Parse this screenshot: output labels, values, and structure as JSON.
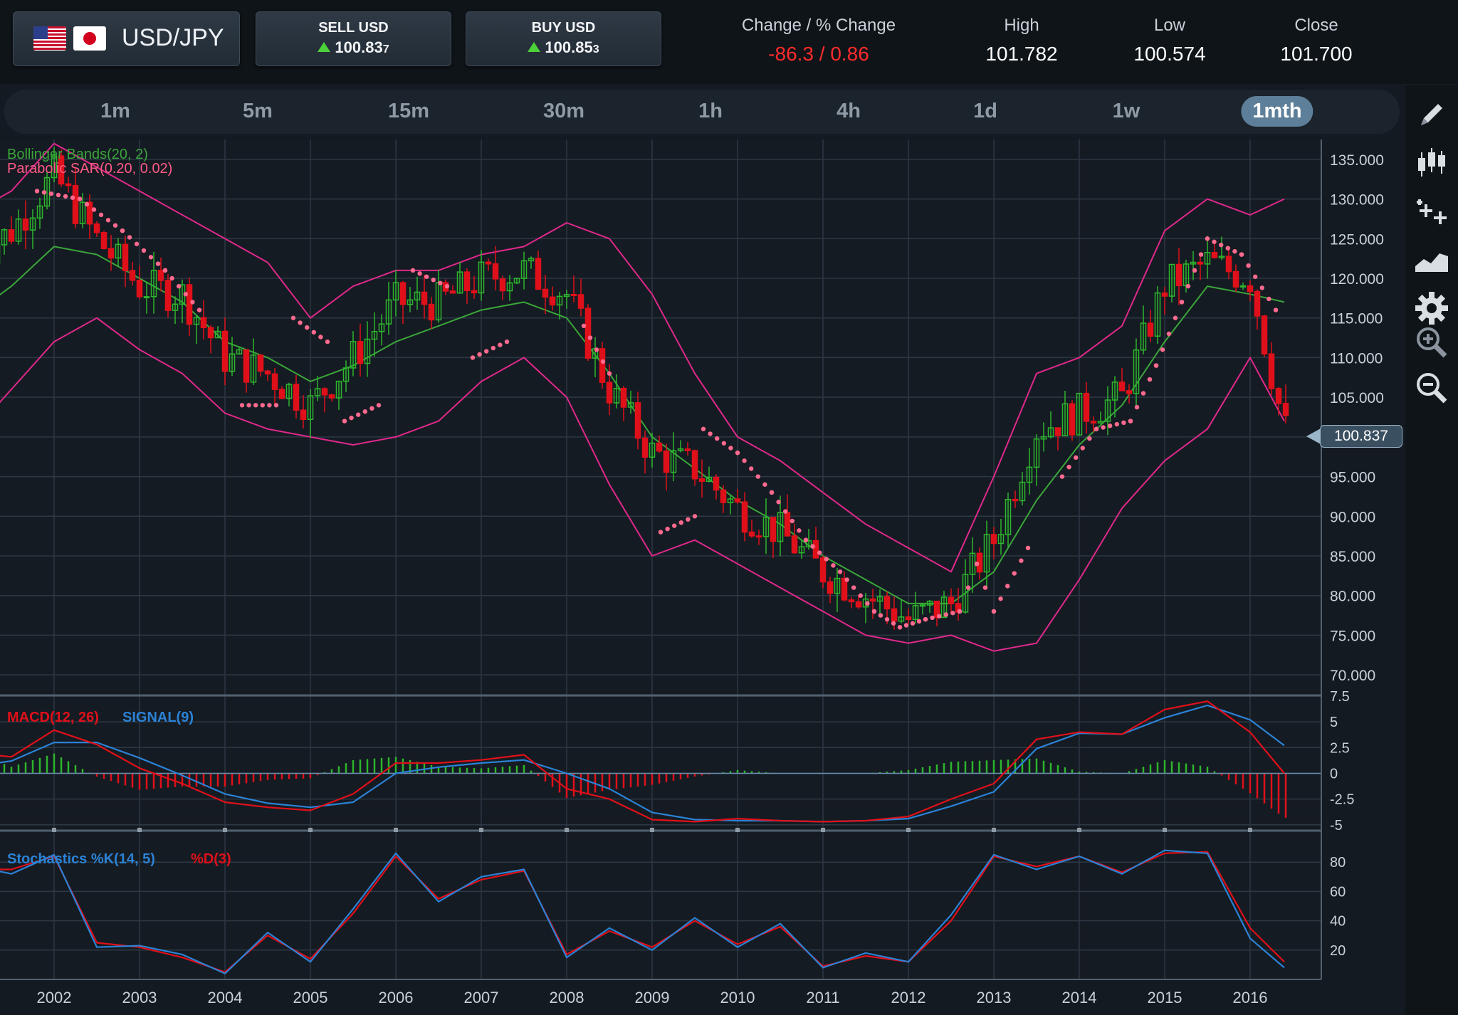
{
  "instrument": {
    "pair": "USD/JPY",
    "flags": [
      "us-flag-icon",
      "jp-flag-icon"
    ]
  },
  "sell": {
    "label": "SELL USD",
    "price_main": "100.83",
    "price_pip": "7",
    "direction": "up"
  },
  "buy": {
    "label": "BUY USD",
    "price_main": "100.85",
    "price_pip": "3",
    "direction": "up"
  },
  "stats": {
    "change_label": "Change / % Change",
    "change_value": "-86.3 / 0.86",
    "high_label": "High",
    "high_value": "101.782",
    "low_label": "Low",
    "low_value": "100.574",
    "close_label": "Close",
    "close_value": "101.700"
  },
  "timeframes": [
    {
      "label": "1m",
      "active": false
    },
    {
      "label": "5m",
      "active": false
    },
    {
      "label": "15m",
      "active": false
    },
    {
      "label": "30m",
      "active": false
    },
    {
      "label": "1h",
      "active": false
    },
    {
      "label": "4h",
      "active": false
    },
    {
      "label": "1d",
      "active": false
    },
    {
      "label": "1w",
      "active": false
    },
    {
      "label": "1mth",
      "active": true
    }
  ],
  "tools": [
    "pencil-icon",
    "candlestick-icon",
    "crosshair-add-icon",
    "area-chart-icon",
    "gear-icon",
    "zoom-in-icon",
    "zoom-out-icon"
  ],
  "current_price_marker": "100.837",
  "colors": {
    "up": "#2db52d",
    "down": "#e0101a",
    "bb_outer": "#e0288c",
    "bb_mid": "#3aa63a",
    "sar": "#ff6a8f",
    "macd": "#e0101a",
    "signal": "#2b82d6",
    "stoch_k": "#2b82d6",
    "stoch_d": "#e0101a"
  },
  "chart_data": [
    {
      "type": "candlestick",
      "title": "",
      "indicator_labels": [
        "Bollinger Bands(20, 2)",
        "Parabolic SAR(0.20, 0.02)"
      ],
      "x_ticks": [
        "2002",
        "2003",
        "2004",
        "2005",
        "2006",
        "2007",
        "2008",
        "2009",
        "2010",
        "2011",
        "2012",
        "2013",
        "2014",
        "2015",
        "2016"
      ],
      "y_ticks": [
        "135.000",
        "130.000",
        "125.000",
        "120.000",
        "115.000",
        "110.000",
        "105.000",
        "100.000",
        "95.000",
        "90.000",
        "85.000",
        "80.000",
        "75.000",
        "70.000"
      ],
      "ylim": [
        67.5,
        137.5
      ],
      "close_series": {
        "x": [
          2001.0,
          2001.5,
          2002.0,
          2002.5,
          2003.0,
          2003.5,
          2004.0,
          2004.5,
          2005.0,
          2005.5,
          2006.0,
          2006.5,
          2007.0,
          2007.5,
          2008.0,
          2008.5,
          2009.0,
          2009.5,
          2010.0,
          2010.5,
          2011.0,
          2011.5,
          2012.0,
          2012.5,
          2013.0,
          2013.5,
          2014.0,
          2014.5,
          2015.0,
          2015.5,
          2016.0,
          2016.4
        ],
        "y": [
          122,
          126,
          133,
          125,
          119,
          118,
          110,
          108,
          104,
          110,
          117,
          117,
          120,
          121,
          118,
          106,
          98,
          96,
          91,
          88,
          83,
          80,
          77,
          79,
          87,
          101,
          103,
          105,
          119,
          122,
          120,
          101
        ]
      },
      "bollinger": {
        "x": [
          2001.0,
          2001.5,
          2002.0,
          2002.5,
          2003.0,
          2003.5,
          2004.0,
          2004.5,
          2005.0,
          2005.5,
          2006.0,
          2006.5,
          2007.0,
          2007.5,
          2008.0,
          2008.5,
          2009.0,
          2009.5,
          2010.0,
          2010.5,
          2011.0,
          2011.5,
          2012.0,
          2012.5,
          2013.0,
          2013.5,
          2014.0,
          2014.5,
          2015.0,
          2015.5,
          2016.0,
          2016.4
        ],
        "upper": [
          128,
          131,
          137,
          134,
          131,
          128,
          125,
          122,
          115,
          119,
          121,
          121,
          123,
          124,
          127,
          125,
          118,
          108,
          100,
          97,
          93,
          89,
          86,
          83,
          95,
          108,
          110,
          114,
          126,
          130,
          128,
          130
        ],
        "middle": [
          115,
          119,
          124,
          123,
          120,
          117,
          112,
          110,
          107,
          109,
          112,
          114,
          116,
          117,
          115,
          108,
          100,
          96,
          92,
          89,
          85,
          82,
          79,
          79,
          83,
          92,
          99,
          104,
          112,
          119,
          118,
          117
        ],
        "lower": [
          100,
          106,
          112,
          115,
          111,
          108,
          103,
          101,
          100,
          99,
          100,
          102,
          107,
          110,
          105,
          94,
          85,
          87,
          84,
          81,
          78,
          75,
          74,
          75,
          73,
          74,
          82,
          91,
          97,
          101,
          110,
          102
        ]
      },
      "parabolic_sar": [
        {
          "x": 2001.0,
          "y": 109
        },
        {
          "x": 2001.5,
          "y": 118
        },
        {
          "x": 2001.8,
          "y": 131
        },
        {
          "x": 2002.3,
          "y": 130
        },
        {
          "x": 2002.8,
          "y": 126
        },
        {
          "x": 2003.3,
          "y": 121
        },
        {
          "x": 2003.7,
          "y": 116
        },
        {
          "x": 2004.2,
          "y": 104
        },
        {
          "x": 2004.6,
          "y": 104
        },
        {
          "x": 2004.8,
          "y": 115
        },
        {
          "x": 2005.2,
          "y": 112
        },
        {
          "x": 2005.4,
          "y": 102
        },
        {
          "x": 2005.8,
          "y": 104
        },
        {
          "x": 2006.2,
          "y": 121
        },
        {
          "x": 2006.6,
          "y": 119
        },
        {
          "x": 2006.9,
          "y": 110
        },
        {
          "x": 2007.3,
          "y": 112
        },
        {
          "x": 2007.7,
          "y": 124
        },
        {
          "x": 2008.2,
          "y": 114
        },
        {
          "x": 2008.5,
          "y": 108
        },
        {
          "x": 2008.8,
          "y": 98
        },
        {
          "x": 2009.1,
          "y": 88
        },
        {
          "x": 2009.5,
          "y": 90
        },
        {
          "x": 2009.6,
          "y": 101
        },
        {
          "x": 2010.0,
          "y": 98
        },
        {
          "x": 2010.4,
          "y": 93
        },
        {
          "x": 2010.8,
          "y": 87
        },
        {
          "x": 2011.2,
          "y": 83
        },
        {
          "x": 2011.6,
          "y": 78
        },
        {
          "x": 2011.9,
          "y": 76
        },
        {
          "x": 2012.2,
          "y": 77
        },
        {
          "x": 2012.6,
          "y": 78
        },
        {
          "x": 2012.8,
          "y": 84
        },
        {
          "x": 2013.0,
          "y": 78
        },
        {
          "x": 2013.4,
          "y": 86
        },
        {
          "x": 2013.8,
          "y": 95
        },
        {
          "x": 2014.2,
          "y": 101
        },
        {
          "x": 2014.6,
          "y": 102
        },
        {
          "x": 2014.9,
          "y": 109
        },
        {
          "x": 2015.2,
          "y": 117
        },
        {
          "x": 2015.5,
          "y": 125
        },
        {
          "x": 2015.9,
          "y": 123
        },
        {
          "x": 2016.3,
          "y": 116
        }
      ]
    },
    {
      "type": "line",
      "indicator_label_macd": "MACD(12, 26)",
      "indicator_label_signal": "SIGNAL(9)",
      "y_ticks": [
        "7.5",
        "5",
        "2.5",
        "0",
        "-2.5",
        "-5"
      ],
      "ylim": [
        -5.5,
        7.5
      ],
      "x": [
        2001.0,
        2001.5,
        2002.0,
        2002.5,
        2003.0,
        2003.5,
        2004.0,
        2004.5,
        2005.0,
        2005.5,
        2006.0,
        2006.5,
        2007.0,
        2007.5,
        2008.0,
        2008.5,
        2009.0,
        2009.5,
        2010.0,
        2010.5,
        2011.0,
        2011.5,
        2012.0,
        2012.5,
        2013.0,
        2013.5,
        2014.0,
        2014.5,
        2015.0,
        2015.5,
        2016.0,
        2016.4
      ],
      "series": [
        {
          "name": "MACD(12, 26)",
          "values": [
            2.0,
            1.6,
            4.2,
            2.8,
            0.5,
            -1.0,
            -2.8,
            -3.3,
            -3.6,
            -2.0,
            1.0,
            1.0,
            1.3,
            1.8,
            -1.5,
            -2.5,
            -4.5,
            -4.7,
            -4.4,
            -4.6,
            -4.7,
            -4.6,
            -4.2,
            -2.5,
            -1.0,
            3.3,
            4.0,
            3.8,
            6.2,
            7.0,
            4.0,
            0.0
          ]
        },
        {
          "name": "SIGNAL(9)",
          "values": [
            0.6,
            1.2,
            3.0,
            3.0,
            1.5,
            -0.2,
            -2.0,
            -2.9,
            -3.3,
            -2.8,
            0.0,
            0.6,
            1.0,
            1.3,
            0.0,
            -1.5,
            -3.8,
            -4.5,
            -4.6,
            -4.6,
            -4.7,
            -4.6,
            -4.4,
            -3.2,
            -1.8,
            2.4,
            3.9,
            3.8,
            5.4,
            6.6,
            5.2,
            2.7
          ]
        }
      ]
    },
    {
      "type": "line",
      "indicator_label_k": "Stochastics %K(14, 5)",
      "indicator_label_d": "%D(3)",
      "y_ticks": [
        "80",
        "60",
        "40",
        "20"
      ],
      "ylim": [
        0,
        100
      ],
      "x": [
        2001.0,
        2001.5,
        2002.0,
        2002.5,
        2003.0,
        2003.5,
        2004.0,
        2004.5,
        2005.0,
        2005.5,
        2006.0,
        2006.5,
        2007.0,
        2007.5,
        2008.0,
        2008.5,
        2009.0,
        2009.5,
        2010.0,
        2010.5,
        2011.0,
        2011.5,
        2012.0,
        2012.5,
        2013.0,
        2013.5,
        2014.0,
        2014.5,
        2015.0,
        2015.5,
        2016.0,
        2016.4
      ],
      "series": [
        {
          "name": "%K(14, 5)",
          "values": [
            78,
            72,
            85,
            22,
            23,
            17,
            4,
            32,
            12,
            48,
            86,
            53,
            70,
            75,
            15,
            35,
            20,
            42,
            22,
            38,
            8,
            18,
            12,
            44,
            85,
            75,
            84,
            72,
            88,
            86,
            28,
            8
          ]
        },
        {
          "name": "%D(3)",
          "values": [
            75,
            75,
            84,
            25,
            22,
            15,
            5,
            30,
            14,
            45,
            84,
            55,
            68,
            74,
            17,
            33,
            22,
            40,
            24,
            36,
            9,
            16,
            12,
            40,
            84,
            77,
            84,
            73,
            86,
            87,
            35,
            12
          ]
        }
      ]
    }
  ]
}
